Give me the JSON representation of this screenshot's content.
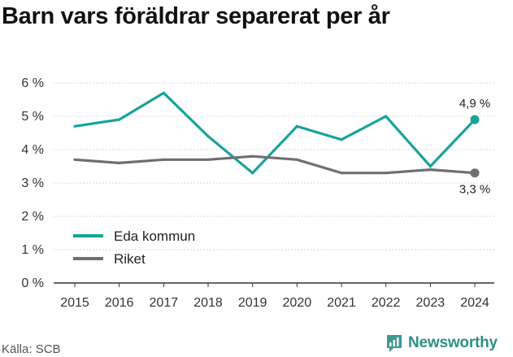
{
  "title": "Barn vars föräldrar separerat per år",
  "source": "Källa: SCB",
  "brand": {
    "name": "Newsworthy",
    "icon": "newsworthy-logo-icon",
    "color": "#3a9a91"
  },
  "chart_data": {
    "type": "line",
    "title": "Barn vars föräldrar separerat per år",
    "x": [
      "2015",
      "2016",
      "2017",
      "2018",
      "2019",
      "2020",
      "2021",
      "2022",
      "2023",
      "2024"
    ],
    "y_ticks": [
      "0 %",
      "1 %",
      "2 %",
      "3 %",
      "4 %",
      "5 %",
      "6 %"
    ],
    "ylim": [
      0,
      6
    ],
    "y_unit": "%",
    "grid": "horizontal",
    "legend_position": "left",
    "series": [
      {
        "name": "Eda kommun",
        "color": "#18a39a",
        "values": [
          4.7,
          4.9,
          5.7,
          4.4,
          3.3,
          4.7,
          4.3,
          5.0,
          3.5,
          4.9
        ],
        "end_label": "4,9 %"
      },
      {
        "name": "Riket",
        "color": "#6e6e73",
        "values": [
          3.7,
          3.6,
          3.7,
          3.7,
          3.8,
          3.7,
          3.3,
          3.3,
          3.4,
          3.3
        ],
        "end_label": "3,3 %"
      }
    ]
  }
}
